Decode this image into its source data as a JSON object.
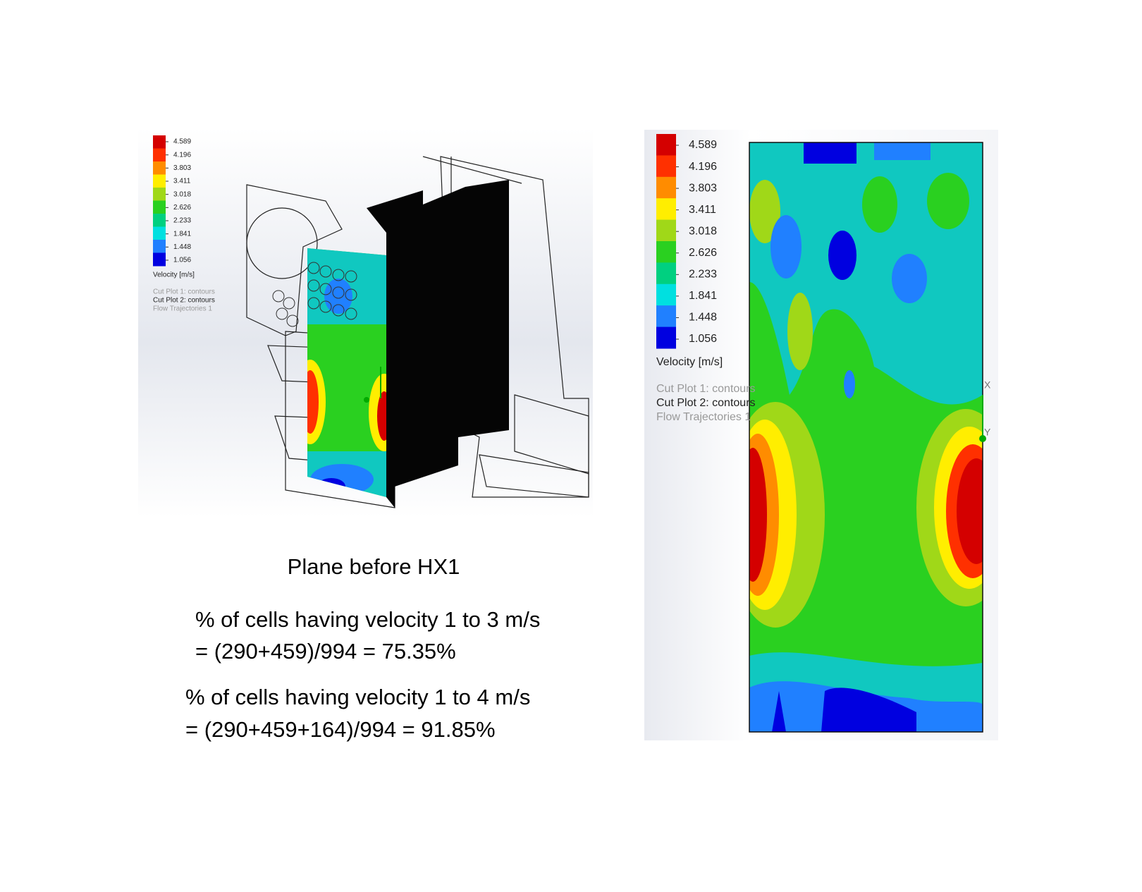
{
  "left_figure": {
    "legend_ticks": [
      "4.589",
      "4.196",
      "3.803",
      "3.411",
      "3.018",
      "2.626",
      "2.233",
      "1.841",
      "1.448",
      "1.056"
    ],
    "legend_title": "Velocity [m/s]",
    "plot_list": [
      "Cut Plot 1: contours",
      "Cut Plot 2: contours",
      "Flow Trajectories 1"
    ]
  },
  "caption": "Plane before HX1",
  "statements": [
    {
      "lines": [
        "% of cells having velocity 1 to 3 m/s",
        "= (290+459)/994 = 75.35%"
      ]
    },
    {
      "lines": [
        "% of cells having velocity 1 to 4 m/s",
        "= (290+459+164)/994 = 91.85%"
      ]
    }
  ],
  "right_figure": {
    "legend_ticks": [
      "4.589",
      "4.196",
      "3.803",
      "3.411",
      "3.018",
      "2.626",
      "2.233",
      "1.841",
      "1.448",
      "1.056"
    ],
    "legend_title": "Velocity [m/s]",
    "plot_list": [
      "Cut Plot 1: contours",
      "Cut Plot 2: contours",
      "Flow Trajectories 1"
    ],
    "axis_labels": [
      "X",
      "Y"
    ]
  }
}
